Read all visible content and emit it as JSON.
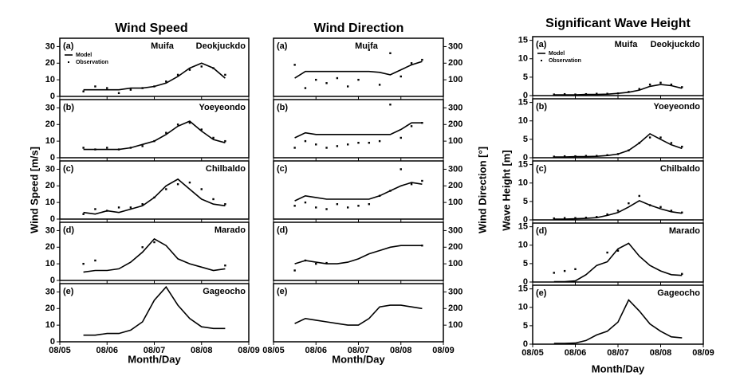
{
  "columns": [
    {
      "title": "Wind Speed",
      "ylabel": "Wind Speed [m/s]",
      "xlabel": "Month/Day"
    },
    {
      "title": "Wind Direction",
      "ylabel": "Wind Direction [°]",
      "xlabel": "Month/Day"
    },
    {
      "title": "Significant Wave Height",
      "ylabel": "Wave Height [m]",
      "xlabel": "Month/Day"
    }
  ],
  "chart_data": [
    {
      "type": "line",
      "panel": "(a)",
      "storm": "Muifa",
      "station": "Deokjuckdo",
      "xlim": [
        5,
        9
      ],
      "xticks": [
        5,
        6,
        7,
        8,
        9
      ],
      "ylim": [
        0,
        35
      ],
      "yticks": [
        0,
        10,
        20,
        30
      ],
      "x": [
        5.5,
        5.75,
        6,
        6.25,
        6.5,
        6.75,
        7,
        7.25,
        7.5,
        7.75,
        8,
        8.25,
        8.5
      ],
      "series": [
        {
          "name": "Model",
          "type": "line",
          "color": "#000000",
          "values": [
            4,
            4,
            4,
            4,
            5,
            5,
            6,
            8,
            12,
            17,
            20,
            17,
            11
          ]
        },
        {
          "name": "Observation",
          "type": "scatter",
          "color": "#000000",
          "values": [
            3,
            6,
            5,
            2,
            4,
            5,
            6,
            9,
            13,
            16,
            18,
            17,
            13
          ]
        }
      ]
    },
    {
      "type": "line",
      "panel": "(b)",
      "station": "Yoeyeondo",
      "xlim": [
        5,
        9
      ],
      "xticks": [
        5,
        6,
        7,
        8,
        9
      ],
      "ylim": [
        0,
        35
      ],
      "yticks": [
        0,
        10,
        20,
        30
      ],
      "x": [
        5.5,
        5.75,
        6,
        6.25,
        6.5,
        6.75,
        7,
        7.25,
        7.5,
        7.75,
        8,
        8.25,
        8.5
      ],
      "series": [
        {
          "type": "line",
          "color": "#000000",
          "values": [
            5,
            5,
            5,
            5,
            6,
            8,
            10,
            14,
            19,
            22,
            16,
            11,
            9
          ]
        },
        {
          "type": "scatter",
          "color": "#000000",
          "values": [
            6,
            5,
            6,
            5,
            6,
            7,
            10,
            15,
            20,
            21,
            17,
            12,
            10
          ]
        }
      ]
    },
    {
      "type": "line",
      "panel": "(c)",
      "station": "Chilbaldo",
      "xlim": [
        5,
        9
      ],
      "xticks": [
        5,
        6,
        7,
        8,
        9
      ],
      "ylim": [
        0,
        35
      ],
      "yticks": [
        0,
        10,
        20,
        30
      ],
      "x": [
        5.5,
        5.75,
        6,
        6.25,
        6.5,
        6.75,
        7,
        7.25,
        7.5,
        7.75,
        8,
        8.25,
        8.5
      ],
      "series": [
        {
          "type": "line",
          "color": "#000000",
          "values": [
            4,
            3,
            5,
            4,
            6,
            8,
            13,
            20,
            24,
            18,
            12,
            9,
            8
          ]
        },
        {
          "type": "scatter",
          "color": "#000000",
          "values": [
            3,
            6,
            5,
            7,
            7,
            9,
            13,
            18,
            21,
            22,
            18,
            12,
            9
          ]
        }
      ]
    },
    {
      "type": "line",
      "panel": "(d)",
      "station": "Marado",
      "xlim": [
        5,
        9
      ],
      "xticks": [
        5,
        6,
        7,
        8,
        9
      ],
      "ylim": [
        0,
        35
      ],
      "yticks": [
        0,
        10,
        20,
        30
      ],
      "x": [
        5.5,
        5.75,
        6,
        6.25,
        6.5,
        6.75,
        7,
        7.25,
        7.5,
        7.75,
        8,
        8.25,
        8.5
      ],
      "series": [
        {
          "type": "line",
          "color": "#000000",
          "values": [
            5,
            6,
            6,
            7,
            11,
            17,
            25,
            21,
            13,
            10,
            8,
            6,
            7
          ]
        },
        {
          "type": "scatter",
          "color": "#000000",
          "values": [
            10,
            12,
            null,
            null,
            null,
            20,
            23,
            null,
            null,
            null,
            null,
            null,
            9
          ]
        }
      ]
    },
    {
      "type": "line",
      "panel": "(e)",
      "station": "Gageocho",
      "xlim": [
        5,
        9
      ],
      "xticks": [
        {
          "value": 5,
          "label": "08/05"
        },
        {
          "value": 6,
          "label": "08/06"
        },
        {
          "value": 7,
          "label": "08/07"
        },
        {
          "value": 8,
          "label": "08/08"
        },
        {
          "value": 9,
          "label": "08/09"
        }
      ],
      "ylim": [
        0,
        35
      ],
      "yticks": [
        0,
        10,
        20,
        30
      ],
      "x": [
        5.5,
        5.75,
        6,
        6.25,
        6.5,
        6.75,
        7,
        7.25,
        7.5,
        7.75,
        8,
        8.25,
        8.5
      ],
      "series": [
        {
          "type": "line",
          "color": "#000000",
          "values": [
            4,
            4,
            5,
            5,
            7,
            12,
            25,
            33,
            22,
            14,
            9,
            8,
            8
          ]
        }
      ]
    },
    {
      "type": "line",
      "panel": "(a)",
      "storm": "Muifa",
      "xlim": [
        5,
        9
      ],
      "xticks": [
        5,
        6,
        7,
        8,
        9
      ],
      "ylim": [
        0,
        350
      ],
      "yticks": [
        100,
        200,
        300
      ],
      "x": [
        5.5,
        5.75,
        6,
        6.25,
        6.5,
        6.75,
        7,
        7.25,
        7.5,
        7.75,
        8,
        8.25,
        8.5
      ],
      "series": [
        {
          "type": "line",
          "color": "#000000",
          "values": [
            110,
            150,
            150,
            150,
            150,
            150,
            150,
            150,
            145,
            130,
            160,
            190,
            210
          ]
        },
        {
          "type": "scatter",
          "color": "#000000",
          "values": [
            190,
            50,
            100,
            80,
            110,
            60,
            100,
            280,
            70,
            260,
            120,
            200,
            220
          ]
        }
      ]
    },
    {
      "type": "line",
      "panel": "(b)",
      "xlim": [
        5,
        9
      ],
      "xticks": [
        5,
        6,
        7,
        8,
        9
      ],
      "ylim": [
        0,
        350
      ],
      "yticks": [
        100,
        200,
        300
      ],
      "x": [
        5.5,
        5.75,
        6,
        6.25,
        6.5,
        6.75,
        7,
        7.25,
        7.5,
        7.75,
        8,
        8.25,
        8.5
      ],
      "series": [
        {
          "type": "line",
          "color": "#000000",
          "values": [
            120,
            150,
            140,
            140,
            140,
            140,
            140,
            140,
            140,
            140,
            170,
            210,
            210
          ]
        },
        {
          "type": "scatter",
          "color": "#000000",
          "values": [
            60,
            100,
            80,
            60,
            70,
            80,
            90,
            90,
            100,
            320,
            120,
            190,
            210
          ]
        }
      ]
    },
    {
      "type": "line",
      "panel": "(c)",
      "xlim": [
        5,
        9
      ],
      "xticks": [
        5,
        6,
        7,
        8,
        9
      ],
      "ylim": [
        0,
        350
      ],
      "yticks": [
        100,
        200,
        300
      ],
      "x": [
        5.5,
        5.75,
        6,
        6.25,
        6.5,
        6.75,
        7,
        7.25,
        7.5,
        7.75,
        8,
        8.25,
        8.5
      ],
      "series": [
        {
          "type": "line",
          "color": "#000000",
          "values": [
            110,
            140,
            130,
            120,
            120,
            120,
            120,
            120,
            140,
            170,
            200,
            220,
            210
          ]
        },
        {
          "type": "scatter",
          "color": "#000000",
          "values": [
            80,
            100,
            70,
            60,
            90,
            70,
            80,
            90,
            140,
            170,
            300,
            210,
            230
          ]
        }
      ]
    },
    {
      "type": "line",
      "panel": "(d)",
      "xlim": [
        5,
        9
      ],
      "xticks": [
        5,
        6,
        7,
        8,
        9
      ],
      "ylim": [
        0,
        350
      ],
      "yticks": [
        100,
        200,
        300
      ],
      "x": [
        5.5,
        5.75,
        6,
        6.25,
        6.5,
        6.75,
        7,
        7.25,
        7.5,
        7.75,
        8,
        8.25,
        8.5
      ],
      "series": [
        {
          "type": "line",
          "color": "#000000",
          "values": [
            100,
            120,
            110,
            100,
            100,
            110,
            130,
            160,
            180,
            200,
            210,
            210,
            210
          ]
        },
        {
          "type": "scatter",
          "color": "#000000",
          "values": [
            60,
            120,
            100,
            105,
            null,
            null,
            null,
            null,
            null,
            null,
            null,
            null,
            210
          ]
        }
      ]
    },
    {
      "type": "line",
      "panel": "(e)",
      "xlim": [
        5,
        9
      ],
      "xticks": [
        {
          "value": 5,
          "label": "08/05"
        },
        {
          "value": 6,
          "label": "08/06"
        },
        {
          "value": 7,
          "label": "08/07"
        },
        {
          "value": 8,
          "label": "08/08"
        },
        {
          "value": 9,
          "label": "08/09"
        }
      ],
      "ylim": [
        0,
        350
      ],
      "yticks": [
        100,
        200,
        300
      ],
      "x": [
        5.5,
        5.75,
        6,
        6.25,
        6.5,
        6.75,
        7,
        7.25,
        7.5,
        7.75,
        8,
        8.25,
        8.5
      ],
      "series": [
        {
          "type": "line",
          "color": "#000000",
          "values": [
            110,
            140,
            130,
            120,
            110,
            100,
            100,
            140,
            210,
            220,
            220,
            210,
            200
          ]
        }
      ]
    },
    {
      "type": "line",
      "panel": "(a)",
      "storm": "Muifa",
      "station": "Deokjuckdo",
      "xlim": [
        5,
        9
      ],
      "xticks": [
        5,
        6,
        7,
        8,
        9
      ],
      "ylim": [
        0,
        16
      ],
      "yticks": [
        0,
        5,
        10,
        15
      ],
      "x": [
        5.5,
        5.75,
        6,
        6.25,
        6.5,
        6.75,
        7,
        7.25,
        7.5,
        7.75,
        8,
        8.25,
        8.5
      ],
      "series": [
        {
          "name": "Model",
          "type": "line",
          "color": "#000000",
          "values": [
            0.2,
            0.2,
            0.2,
            0.3,
            0.3,
            0.4,
            0.6,
            0.9,
            1.5,
            2.5,
            3,
            2.7,
            2
          ]
        },
        {
          "name": "Observation",
          "type": "scatter",
          "color": "#000000",
          "values": [
            0.3,
            0.4,
            0.3,
            0.4,
            0.5,
            0.5,
            0.6,
            1,
            1.8,
            3,
            3.5,
            3,
            2.3
          ]
        }
      ]
    },
    {
      "type": "line",
      "panel": "(b)",
      "station": "Yoeyeondo",
      "xlim": [
        5,
        9
      ],
      "xticks": [
        5,
        6,
        7,
        8,
        9
      ],
      "ylim": [
        0,
        16
      ],
      "yticks": [
        0,
        5,
        10,
        15
      ],
      "x": [
        5.5,
        5.75,
        6,
        6.25,
        6.5,
        6.75,
        7,
        7.25,
        7.5,
        7.75,
        8,
        8.25,
        8.5
      ],
      "series": [
        {
          "type": "line",
          "color": "#000000",
          "values": [
            0.2,
            0.2,
            0.3,
            0.3,
            0.4,
            0.6,
            1,
            2,
            4,
            6.5,
            5,
            3.5,
            2.5
          ]
        },
        {
          "type": "scatter",
          "color": "#000000",
          "values": [
            0.3,
            0.4,
            0.4,
            0.5,
            0.5,
            0.7,
            1,
            2,
            4,
            5.5,
            5.5,
            4,
            3
          ]
        }
      ]
    },
    {
      "type": "line",
      "panel": "(c)",
      "station": "Chilbaldo",
      "xlim": [
        5,
        9
      ],
      "xticks": [
        5,
        6,
        7,
        8,
        9
      ],
      "ylim": [
        0,
        16
      ],
      "yticks": [
        0,
        5,
        10,
        15
      ],
      "x": [
        5.5,
        5.75,
        6,
        6.25,
        6.5,
        6.75,
        7,
        7.25,
        7.5,
        7.75,
        8,
        8.25,
        8.5
      ],
      "series": [
        {
          "type": "line",
          "color": "#000000",
          "values": [
            0.2,
            0.2,
            0.3,
            0.4,
            0.6,
            1.2,
            2,
            3.5,
            5.2,
            4,
            3,
            2.2,
            1.8
          ]
        },
        {
          "type": "scatter",
          "color": "#000000",
          "values": [
            0.4,
            0.5,
            0.5,
            0.6,
            0.8,
            1.5,
            2.5,
            4.5,
            6.5,
            4,
            3.5,
            2.5,
            2
          ]
        }
      ]
    },
    {
      "type": "line",
      "panel": "(d)",
      "station": "Marado",
      "xlim": [
        5,
        9
      ],
      "xticks": [
        5,
        6,
        7,
        8,
        9
      ],
      "ylim": [
        0,
        16
      ],
      "yticks": [
        0,
        5,
        10,
        15
      ],
      "x": [
        5.5,
        5.75,
        6,
        6.25,
        6.5,
        6.75,
        7,
        7.25,
        7.5,
        7.75,
        8,
        8.25,
        8.5
      ],
      "series": [
        {
          "type": "line",
          "color": "#000000",
          "values": [
            0.1,
            0.1,
            0.3,
            2,
            4.5,
            5.5,
            9,
            10.5,
            7,
            4.5,
            3,
            2,
            1.8
          ]
        },
        {
          "type": "scatter",
          "color": "#000000",
          "values": [
            2.5,
            3,
            3.5,
            null,
            null,
            8,
            8.5,
            null,
            null,
            null,
            null,
            null,
            2.2
          ]
        }
      ]
    },
    {
      "type": "line",
      "panel": "(e)",
      "station": "Gageocho",
      "xlim": [
        5,
        9
      ],
      "xticks": [
        {
          "value": 5,
          "label": "08/05"
        },
        {
          "value": 6,
          "label": "08/06"
        },
        {
          "value": 7,
          "label": "08/07"
        },
        {
          "value": 8,
          "label": "08/08"
        },
        {
          "value": 9,
          "label": "08/09"
        }
      ],
      "ylim": [
        0,
        16
      ],
      "yticks": [
        0,
        5,
        10,
        15
      ],
      "x": [
        5.5,
        5.75,
        6,
        6.25,
        6.5,
        6.75,
        7,
        7.25,
        7.5,
        7.75,
        8,
        8.25,
        8.5
      ],
      "series": [
        {
          "type": "line",
          "color": "#000000",
          "values": [
            0.2,
            0.2,
            0.3,
            1,
            2.5,
            3.5,
            6,
            12,
            9,
            5.5,
            3.5,
            2,
            1.7
          ]
        }
      ]
    }
  ]
}
